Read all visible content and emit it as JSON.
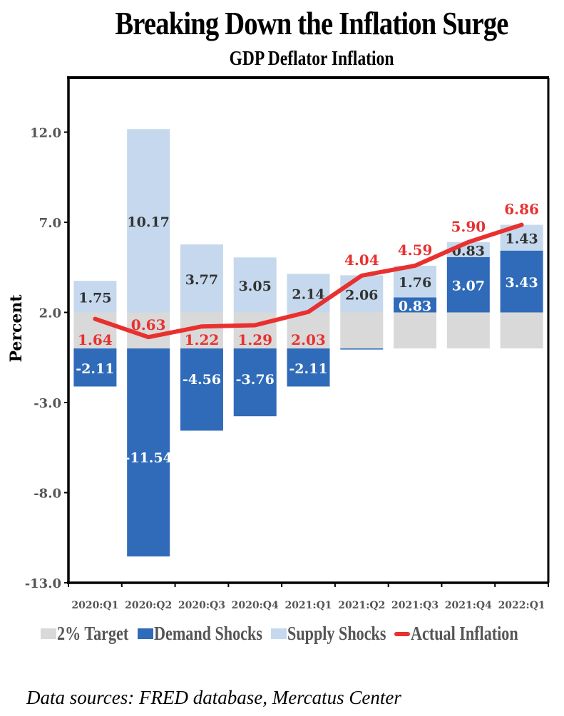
{
  "chart_data": {
    "type": "bar",
    "subtype": "stacked-bar-with-line",
    "title": "Breaking Down the Inflation Surge",
    "subtitle": "GDP Deflator Inflation",
    "xlabel": "",
    "ylabel": "Percent",
    "ylim": [
      -13.0,
      15.0
    ],
    "yticks": [
      12.0,
      7.0,
      2.0,
      -3.0,
      -8.0,
      -13.0
    ],
    "ytick_labels": [
      "12.0",
      "7.0",
      "2.0",
      "-3.0",
      "-8.0",
      "-13.0"
    ],
    "grid": false,
    "legend_position": "bottom",
    "categories": [
      "2020:Q1",
      "2020:Q2",
      "2020:Q3",
      "2020:Q4",
      "2021:Q1",
      "2021:Q2",
      "2021:Q3",
      "2021:Q4",
      "2022:Q1"
    ],
    "series": [
      {
        "name": "2% Target",
        "kind": "bar",
        "color": "#d9d9d9",
        "values": [
          2,
          2,
          2,
          2,
          2,
          2,
          2,
          2,
          2
        ],
        "labels": [
          null,
          null,
          null,
          null,
          null,
          null,
          null,
          null,
          null
        ]
      },
      {
        "name": "Demand Shocks",
        "kind": "bar",
        "color": "#2f6bb9",
        "values": [
          -2.11,
          -11.54,
          -4.56,
          -3.76,
          -2.11,
          -0.05,
          0.83,
          3.07,
          3.43
        ],
        "labels": [
          "-2.11",
          "-11.54",
          "-4.56",
          "-3.76",
          "-2.11",
          null,
          "0.83",
          "3.07",
          "3.43"
        ]
      },
      {
        "name": "Supply Shocks",
        "kind": "bar",
        "color": "#c5d8ed",
        "values": [
          1.75,
          10.17,
          3.77,
          3.05,
          2.14,
          2.06,
          1.76,
          0.83,
          1.43
        ],
        "labels": [
          "1.75",
          "10.17",
          "3.77",
          "3.05",
          "2.14",
          "2.06",
          "1.76",
          "0.83",
          "1.43"
        ]
      },
      {
        "name": "Actual Inflation",
        "kind": "line",
        "color": "#e8312f",
        "values": [
          1.64,
          0.63,
          1.22,
          1.29,
          2.03,
          4.04,
          4.59,
          5.9,
          6.86
        ],
        "labels": [
          "1.64",
          "0.63",
          "1.22",
          "1.29",
          "2.03",
          "4.04",
          "4.59",
          "5.90",
          "6.86"
        ]
      }
    ]
  },
  "legend": [
    {
      "label": "2% Target",
      "color": "#d9d9d9",
      "kind": "swatch"
    },
    {
      "label": "Demand Shocks",
      "color": "#2f6bb9",
      "kind": "swatch"
    },
    {
      "label": "Supply Shocks",
      "color": "#c5d8ed",
      "kind": "swatch"
    },
    {
      "label": "Actual Inflation",
      "color": "#e8312f",
      "kind": "line"
    }
  ],
  "source": "Data sources: FRED database, Mercatus Center"
}
